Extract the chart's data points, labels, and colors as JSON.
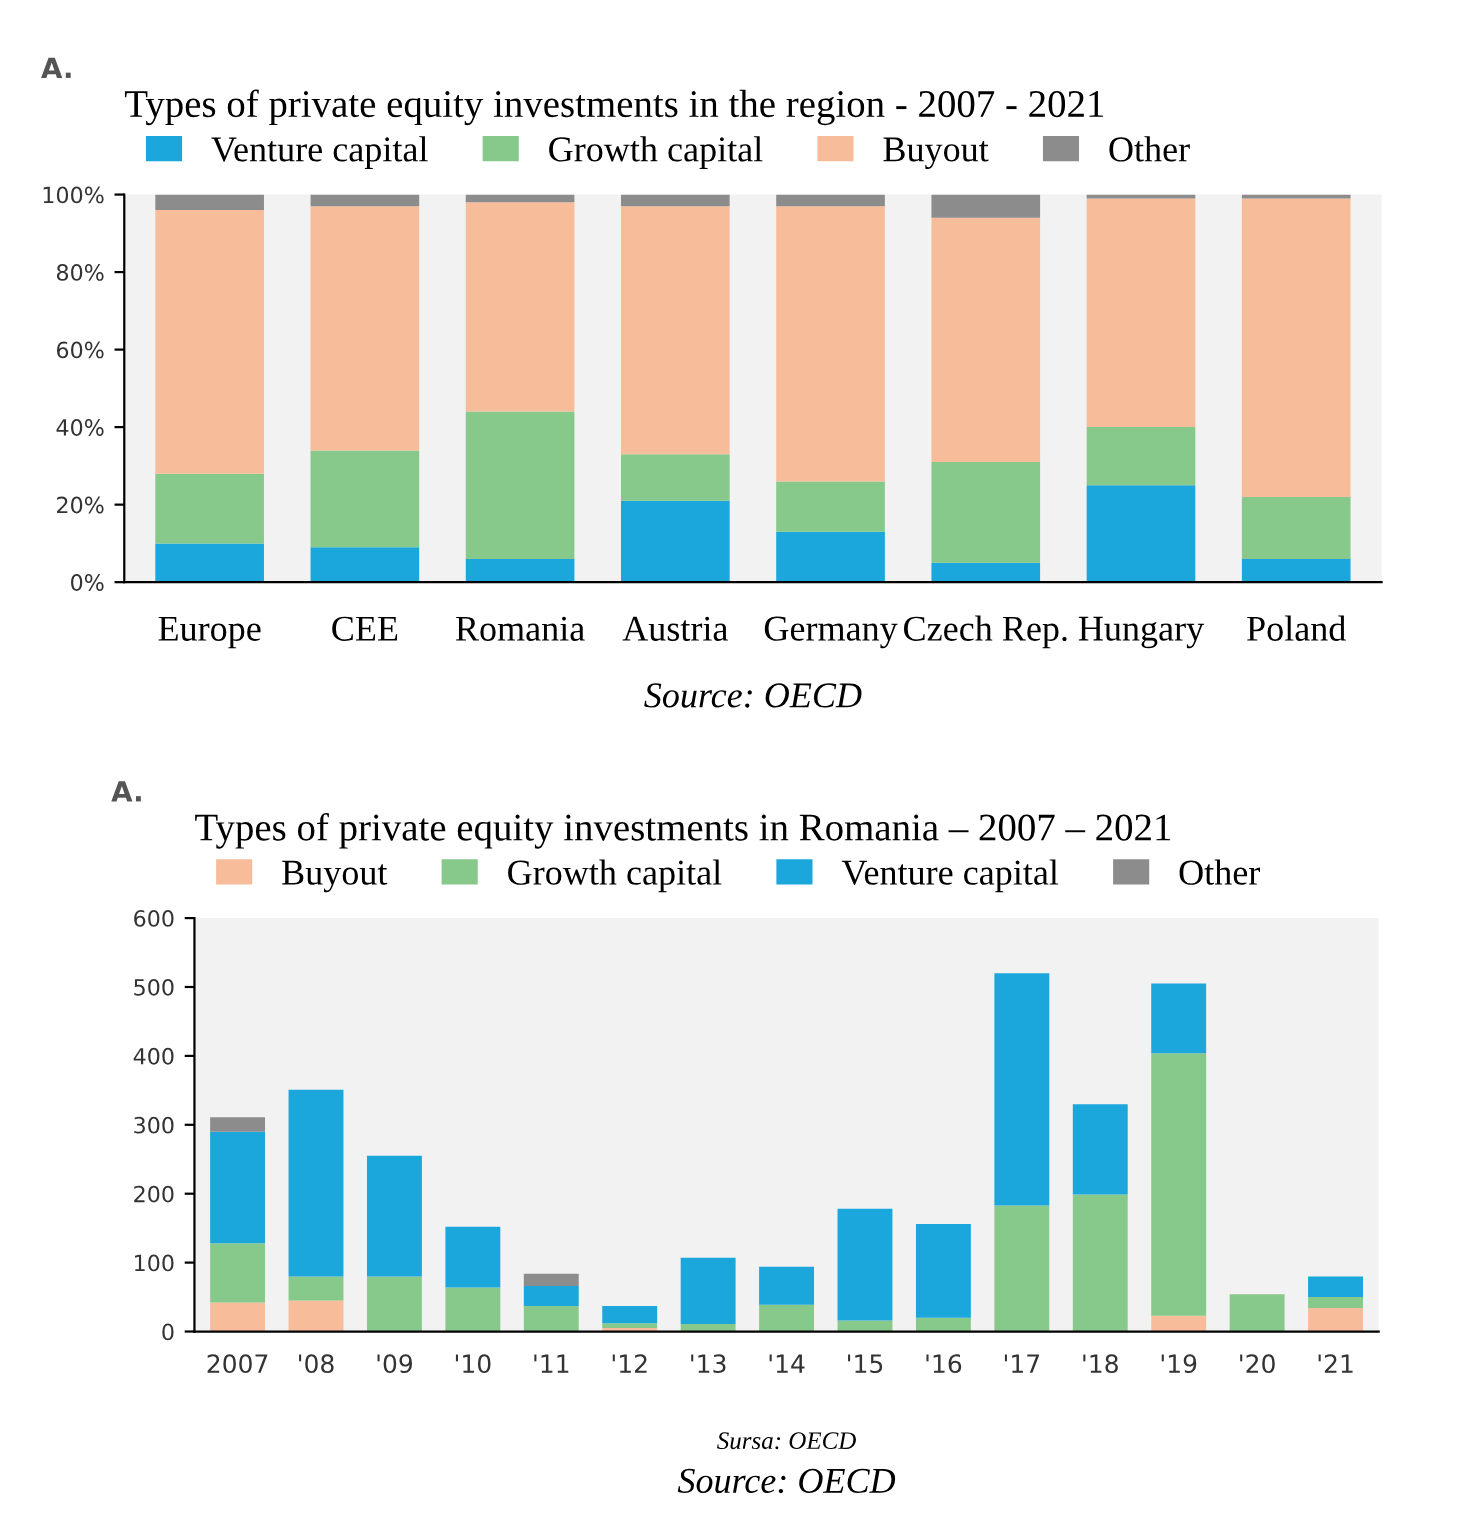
{
  "chart_data": [
    {
      "type": "bar",
      "title": "Types of private equity investments in the region - 2007 - 2021",
      "stacked": true,
      "legend": "top",
      "categories": [
        "Europe",
        "CEE",
        "Romania",
        "Austria",
        "Germany",
        "Czech Rep.",
        "Hungary",
        "Poland"
      ],
      "series": [
        {
          "name": "Venture capital",
          "color": "#1ba6dc",
          "values": [
            10,
            9,
            6,
            21,
            13,
            5,
            25,
            6
          ]
        },
        {
          "name": "Growth capital",
          "color": "#86c98a",
          "values": [
            18,
            25,
            38,
            12,
            13,
            26,
            15,
            16
          ]
        },
        {
          "name": "Buyout",
          "color": "#f7bc9a",
          "values": [
            68,
            63,
            54,
            64,
            71,
            63,
            59,
            77
          ]
        },
        {
          "name": "Other",
          "color": "#8c8c8c",
          "values": [
            4,
            3,
            2,
            3,
            3,
            6,
            1,
            1
          ]
        }
      ],
      "ylim": [
        0,
        100
      ],
      "yticks": [
        {
          "value": 0,
          "label": "0%"
        },
        {
          "value": 20,
          "label": "20%"
        },
        {
          "value": 40,
          "label": "40%"
        },
        {
          "value": 60,
          "label": "60%"
        },
        {
          "value": 80,
          "label": "80%"
        },
        {
          "value": 100,
          "label": "100%"
        }
      ],
      "annotations": [
        "A.",
        "Source: OECD"
      ]
    },
    {
      "type": "bar",
      "title": "Types of private equity investments in Romania – 2007 – 2021",
      "stacked": true,
      "legend": "top",
      "categories": [
        "2007",
        "'08",
        "'09",
        "'10",
        "'11",
        "'12",
        "'13",
        "'14",
        "'15",
        "'16",
        "'17",
        "'18",
        "'19",
        "'20",
        "'21"
      ],
      "series": [
        {
          "name": "Buyout",
          "color": "#f7bc9a",
          "values": [
            42,
            45,
            0,
            0,
            0,
            5,
            0,
            0,
            0,
            0,
            0,
            0,
            23,
            0,
            34
          ]
        },
        {
          "name": "Growth capital",
          "color": "#86c98a",
          "values": [
            86,
            35,
            80,
            64,
            37,
            7,
            11,
            39,
            16,
            20,
            183,
            199,
            381,
            54,
            16
          ]
        },
        {
          "name": "Venture capital",
          "color": "#1ba6dc",
          "values": [
            162,
            271,
            175,
            88,
            29,
            25,
            96,
            55,
            162,
            136,
            337,
            131,
            101,
            0,
            30
          ]
        },
        {
          "name": "Other",
          "color": "#8c8c8c",
          "values": [
            21,
            0,
            0,
            0,
            18,
            0,
            0,
            0,
            0,
            0,
            0,
            0,
            0,
            0,
            0
          ]
        }
      ],
      "ylim": [
        0,
        600
      ],
      "yticks": [
        0,
        100,
        200,
        300,
        400,
        500,
        600
      ],
      "annotations": [
        "A.",
        "Sursa: OECD",
        "Source: OECD"
      ]
    }
  ]
}
